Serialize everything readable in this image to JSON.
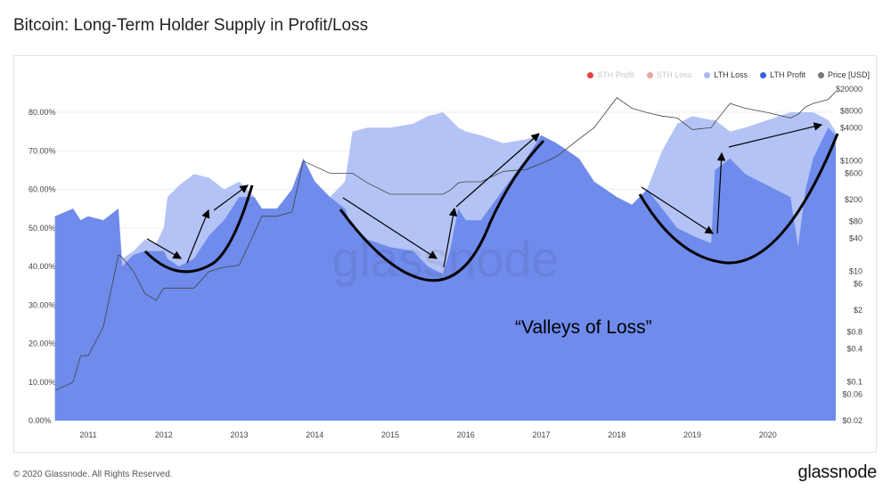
{
  "title": "Bitcoin: Long-Term Holder Supply in Profit/Loss",
  "footer": "© 2020 Glassnode. All Rights Reserved.",
  "logo": "glassnode",
  "watermark": "glassnode",
  "annotation": "“Valleys of Loss”",
  "legend": [
    {
      "label": "STH Profit",
      "color": "#e8413f",
      "dimmed": true
    },
    {
      "label": "STH Loss",
      "color": "#f3a3a3",
      "dimmed": true
    },
    {
      "label": "LTH Loss",
      "color": "#a9b8f0",
      "dimmed": false
    },
    {
      "label": "LTH Profit",
      "color": "#3d5fe0",
      "dimmed": false
    },
    {
      "label": "Price [USD]",
      "color": "#777777",
      "dimmed": false
    }
  ],
  "chart_data": {
    "type": "area",
    "title": "Bitcoin: Long-Term Holder Supply in Profit/Loss",
    "x_ticks": [
      "2011",
      "2012",
      "2013",
      "2014",
      "2015",
      "2016",
      "2017",
      "2018",
      "2019",
      "2020"
    ],
    "y_ticks": [
      "0.00%",
      "10.00%",
      "20.00%",
      "30.00%",
      "40.00%",
      "50.00%",
      "60.00%",
      "70.00%",
      "80.00%"
    ],
    "y2_ticks": [
      "$0.02",
      "$0.06",
      "$0.1",
      "$0.4",
      "$0.8",
      "$2",
      "$6",
      "$10",
      "$40",
      "$80",
      "$200",
      "$600",
      "$1000",
      "$4000",
      "$8000",
      "$20000"
    ],
    "ylim": [
      0,
      80
    ],
    "y2_scale": "log",
    "y2lim": [
      0.02,
      20000
    ],
    "grid": true,
    "legend_position": "top-right",
    "x": [
      2010.56,
      2010.8,
      2010.9,
      2011.0,
      2011.2,
      2011.4,
      2011.45,
      2011.6,
      2011.75,
      2011.9,
      2012.0,
      2012.05,
      2012.2,
      2012.4,
      2012.6,
      2012.8,
      2013.0,
      2013.2,
      2013.3,
      2013.5,
      2013.7,
      2013.85,
      2014.0,
      2014.2,
      2014.4,
      2014.5,
      2014.7,
      2015.0,
      2015.3,
      2015.5,
      2015.7,
      2015.8,
      2015.9,
      2016.0,
      2016.2,
      2016.5,
      2016.8,
      2017.0,
      2017.2,
      2017.5,
      2017.7,
      2018.0,
      2018.2,
      2018.4,
      2018.6,
      2018.8,
      2019.0,
      2019.25,
      2019.3,
      2019.5,
      2019.7,
      2020.0,
      2020.3,
      2020.4,
      2020.5,
      2020.6,
      2020.8,
      2020.9
    ],
    "series": [
      {
        "name": "LTH Loss",
        "values_top": [
          53,
          55,
          52,
          53,
          52,
          55,
          42,
          44,
          47,
          46,
          50,
          58,
          61,
          64,
          63,
          60,
          62,
          58,
          55,
          55,
          60,
          68,
          62,
          58,
          62,
          75,
          76,
          76,
          77,
          79,
          80,
          78,
          76,
          75,
          74,
          72,
          73,
          74,
          72,
          68,
          62,
          58,
          56,
          60,
          70,
          77,
          79,
          78,
          78,
          75,
          76,
          78,
          80,
          80,
          80,
          80,
          78,
          75
        ]
      },
      {
        "name": "LTH Profit",
        "values": [
          53,
          55,
          52,
          53,
          52,
          55,
          40,
          43,
          44,
          44,
          44,
          42,
          40,
          42,
          48,
          52,
          58,
          58,
          55,
          55,
          60,
          68,
          62,
          58,
          55,
          50,
          47,
          45,
          44,
          40,
          38,
          45,
          55,
          52,
          52,
          60,
          68,
          74,
          72,
          68,
          62,
          58,
          56,
          60,
          55,
          50,
          48,
          46,
          65,
          68,
          64,
          61,
          58,
          45,
          60,
          68,
          76,
          74
        ]
      },
      {
        "name": "Price [USD]",
        "values": [
          0.07,
          0.1,
          0.3,
          0.3,
          1,
          20,
          18,
          10,
          4,
          3,
          5,
          5,
          5,
          5,
          10,
          12,
          13,
          50,
          100,
          100,
          120,
          1000,
          800,
          600,
          600,
          600,
          400,
          250,
          250,
          250,
          250,
          300,
          400,
          420,
          420,
          650,
          700,
          900,
          1200,
          2500,
          4000,
          14000,
          9000,
          7500,
          6500,
          6000,
          3700,
          4000,
          5000,
          11000,
          9000,
          7500,
          6000,
          7000,
          9500,
          11000,
          13000,
          18000
        ]
      }
    ]
  }
}
